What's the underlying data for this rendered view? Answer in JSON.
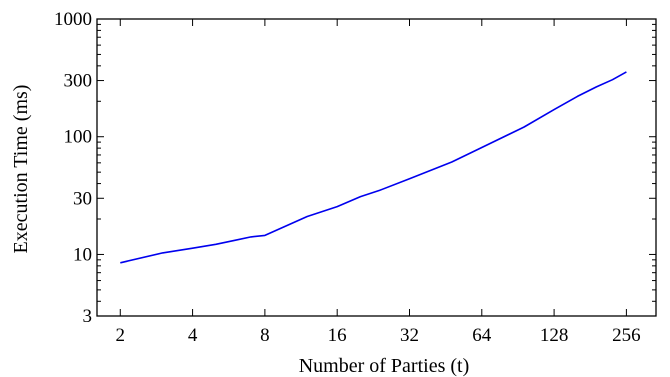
{
  "chart_data": {
    "type": "line",
    "xlabel": "Number of Parties (t)",
    "ylabel": "Execution Time (ms)",
    "x_scale": "log2",
    "y_scale": "log10",
    "xlim": [
      1.6,
      340
    ],
    "ylim": [
      3,
      1000
    ],
    "x_ticks": [
      2,
      4,
      8,
      16,
      32,
      64,
      128,
      256
    ],
    "x_tick_labels": [
      "2",
      "4",
      "8",
      "16",
      "32",
      "64",
      "128",
      "256"
    ],
    "y_ticks": [
      3,
      10,
      30,
      100,
      300,
      1000
    ],
    "y_tick_labels": [
      "3",
      "10",
      "30",
      "100",
      "300",
      "1000"
    ],
    "grid": false,
    "line_color": "#0000ee",
    "series": [
      {
        "x": [
          2,
          3,
          4,
          5,
          6,
          7,
          8,
          12,
          16,
          20,
          24,
          32,
          48,
          64,
          96,
          128,
          160,
          192,
          224,
          256
        ],
        "y": [
          8.5,
          10.3,
          11.3,
          12.2,
          13.2,
          14.1,
          14.5,
          21,
          25.5,
          31,
          35,
          44,
          61,
          81,
          121,
          170,
          220,
          265,
          305,
          355
        ]
      }
    ]
  }
}
